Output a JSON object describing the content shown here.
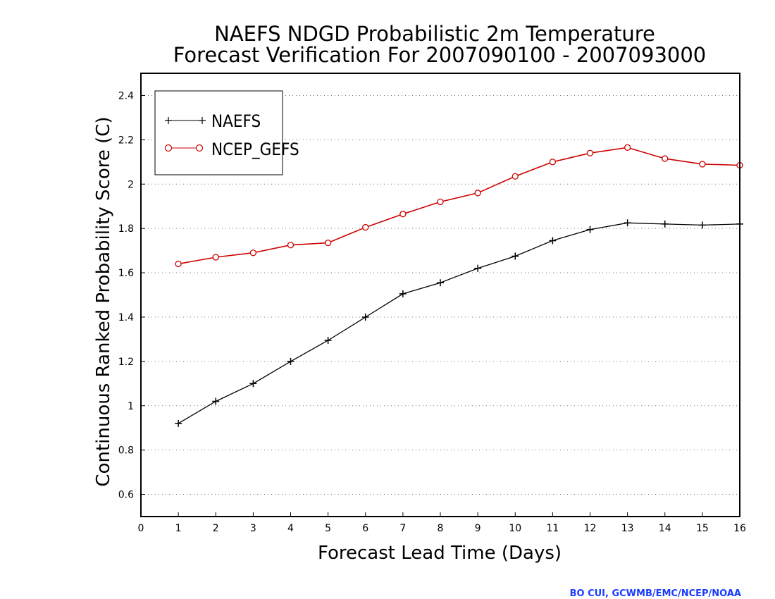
{
  "chart_data": {
    "type": "line",
    "title": "NAEFS NDGD Probabilistic 2m Temperature",
    "subtitle": "Forecast Verification For 2007090100 - 2007093000",
    "xlabel": "Forecast Lead Time (Days)",
    "ylabel": "Continuous Ranked Probability Score (C)",
    "xlim": [
      0,
      16
    ],
    "ylim": [
      0.5,
      2.5
    ],
    "xticks": [
      0,
      1,
      2,
      3,
      4,
      5,
      6,
      7,
      8,
      9,
      10,
      11,
      12,
      13,
      14,
      15,
      16
    ],
    "yticks": [
      0.6,
      0.8,
      1,
      1.2,
      1.4,
      1.6,
      1.8,
      2,
      2.2,
      2.4
    ],
    "ytick_labels": [
      "0.6",
      "0.8",
      "1",
      "1.2",
      "1.4",
      "1.6",
      "1.8",
      "2",
      "2.2",
      "2.4"
    ],
    "grid": "horizontal dotted",
    "legend_position": "top-left",
    "x": [
      1,
      2,
      3,
      4,
      5,
      6,
      7,
      8,
      9,
      10,
      11,
      12,
      13,
      14,
      15,
      16
    ],
    "series": [
      {
        "name": "NAEFS",
        "color": "#000000",
        "marker": "plus",
        "values": [
          0.92,
          1.02,
          1.1,
          1.2,
          1.295,
          1.4,
          1.505,
          1.555,
          1.62,
          1.675,
          1.745,
          1.795,
          1.825,
          1.82,
          1.815,
          1.82
        ]
      },
      {
        "name": "NCEP_GEFS",
        "color": "#cc0000",
        "marker": "circle",
        "values": [
          1.64,
          1.67,
          1.69,
          1.725,
          1.735,
          1.805,
          1.865,
          1.92,
          1.96,
          2.035,
          2.1,
          2.14,
          2.165,
          2.115,
          2.09,
          2.085
        ]
      }
    ]
  },
  "credit": "BO CUI, GCWMB/EMC/NCEP/NOAA"
}
